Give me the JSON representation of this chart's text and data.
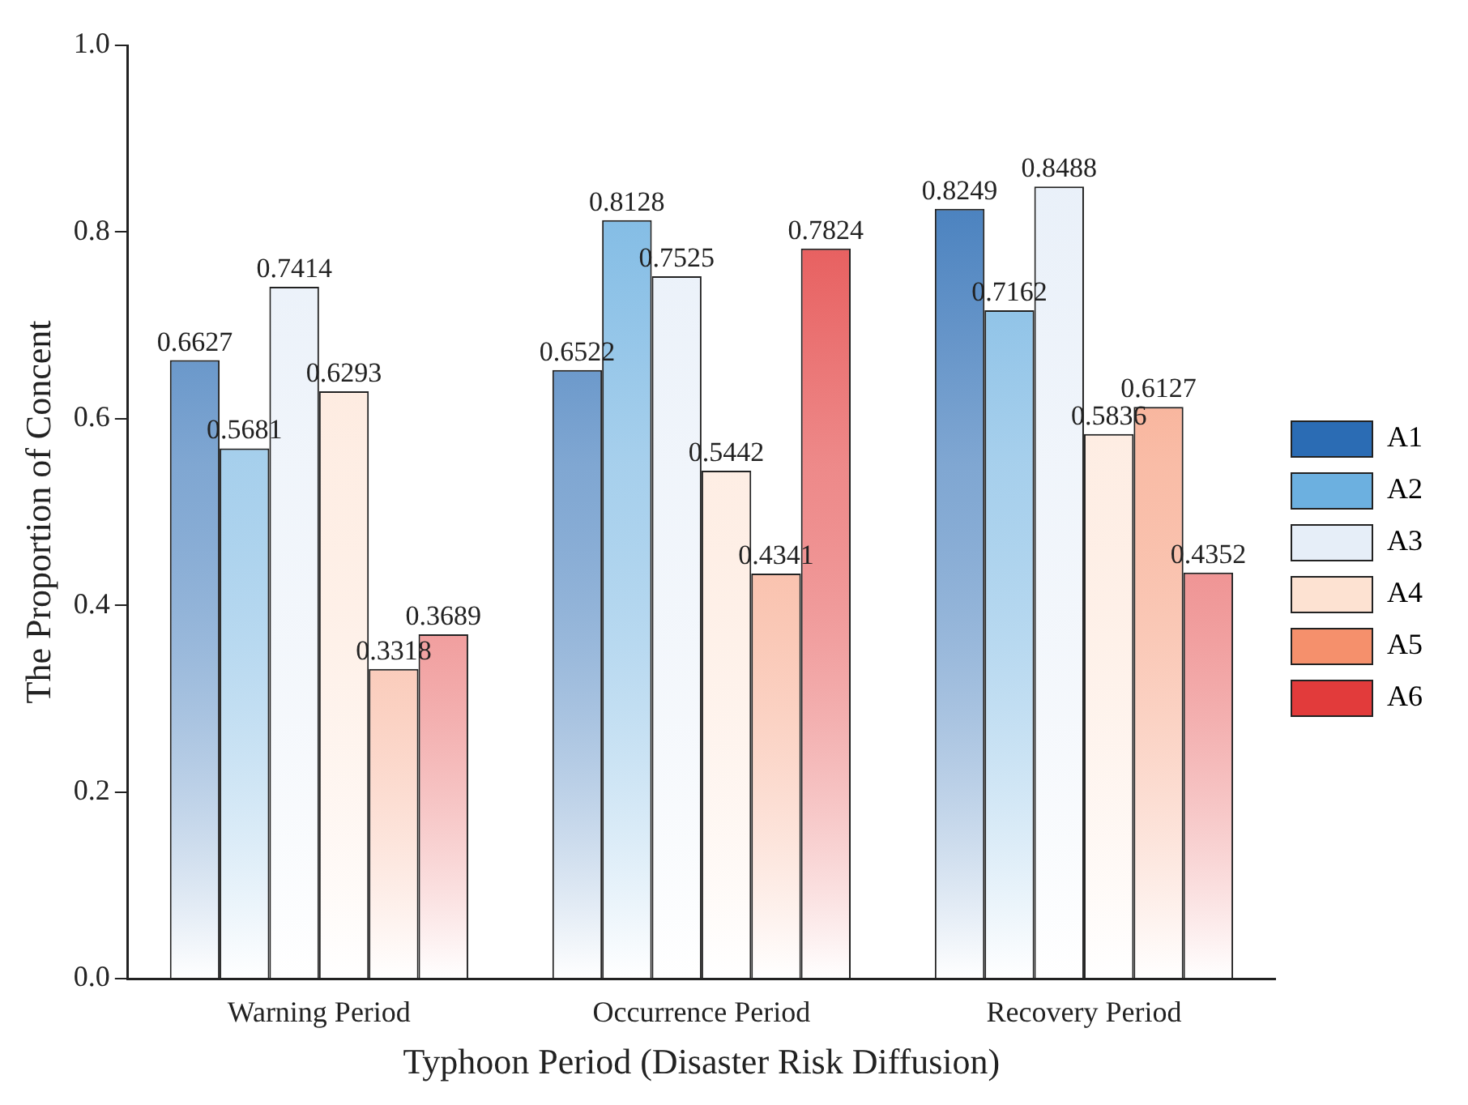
{
  "chart_data": {
    "type": "bar",
    "xlabel": "Typhoon Period (Disaster Risk Diffusion)",
    "ylabel": "The Proportion of Concent",
    "categories": [
      "Warning Period",
      "Occurrence Period",
      "Recovery Period"
    ],
    "series": [
      {
        "name": "A1",
        "color": "#2b6cb4",
        "values": [
          0.6627,
          0.6522,
          0.8249
        ]
      },
      {
        "name": "A2",
        "color": "#6cb0e0",
        "values": [
          0.5681,
          0.8128,
          0.7162
        ]
      },
      {
        "name": "A3",
        "color": "#e6eef8",
        "values": [
          0.7414,
          0.7525,
          0.8488
        ]
      },
      {
        "name": "A4",
        "color": "#fde2d2",
        "values": [
          0.6293,
          0.5442,
          0.5836
        ]
      },
      {
        "name": "A5",
        "color": "#f5906c",
        "values": [
          0.3318,
          0.4341,
          0.6127
        ]
      },
      {
        "name": "A6",
        "color": "#e23b3b",
        "values": [
          0.3689,
          0.7824,
          0.4352
        ]
      }
    ],
    "ylim": [
      0,
      1
    ],
    "yticks": [
      {
        "value": 0,
        "label": "0.0"
      },
      0.2,
      0.4,
      0.6,
      0.8,
      {
        "value": 1,
        "label": "1.0"
      }
    ],
    "grid": false,
    "legend": "right",
    "data_labels": true
  }
}
